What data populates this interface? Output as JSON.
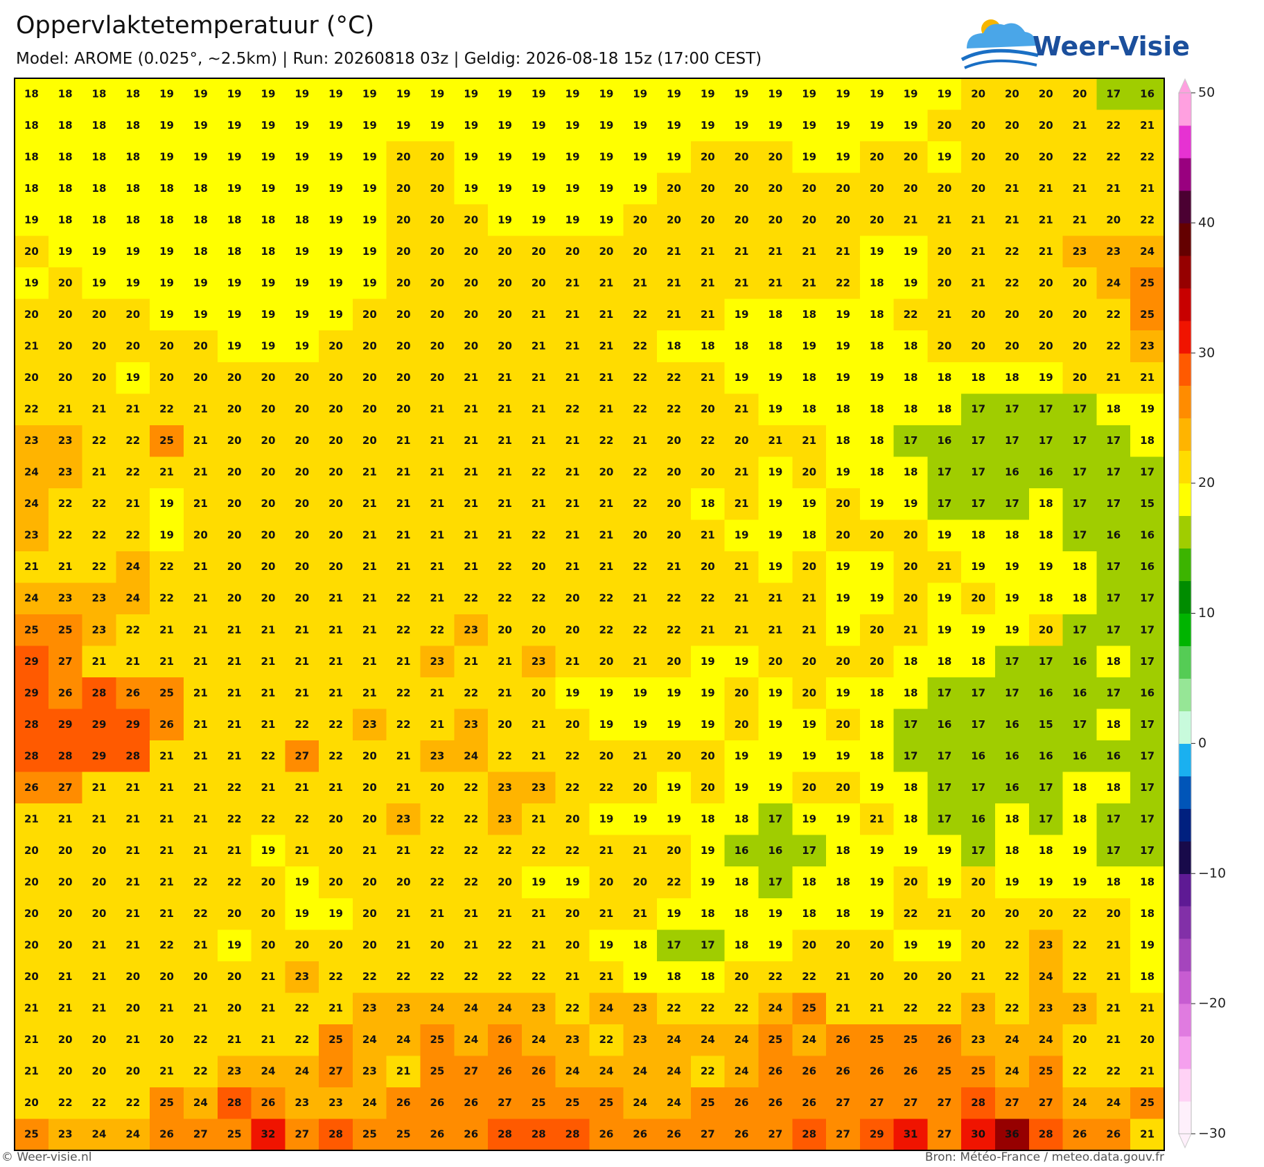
{
  "header": {
    "title": "Oppervlaktetemperatuur (°C)",
    "subtitle": "Model: AROME (0.025°, ~2.5km)  |  Run: 20260818 03z  |  Geldig: 2026-08-18 15z (17:00 CEST)",
    "logo": "Weer-Visie"
  },
  "map": {
    "grid": [
      [
        18,
        18,
        18,
        18,
        19,
        19,
        19,
        19,
        19,
        19,
        19,
        19,
        19,
        19,
        19,
        19,
        19,
        19,
        19,
        19,
        19,
        19,
        19,
        19,
        19,
        19,
        19,
        19,
        20,
        20,
        20,
        20,
        17,
        16
      ],
      [
        18,
        18,
        18,
        18,
        19,
        19,
        19,
        19,
        19,
        19,
        19,
        19,
        19,
        19,
        19,
        19,
        19,
        19,
        19,
        19,
        19,
        19,
        19,
        19,
        19,
        19,
        19,
        20,
        20,
        20,
        20,
        21,
        22,
        21
      ],
      [
        18,
        18,
        18,
        18,
        19,
        19,
        19,
        19,
        19,
        19,
        19,
        20,
        20,
        19,
        19,
        19,
        19,
        19,
        19,
        19,
        20,
        20,
        20,
        19,
        19,
        20,
        20,
        19,
        20,
        20,
        20,
        22,
        22,
        22
      ],
      [
        18,
        18,
        18,
        18,
        18,
        18,
        19,
        19,
        19,
        19,
        19,
        20,
        20,
        19,
        19,
        19,
        19,
        19,
        19,
        20,
        20,
        20,
        20,
        20,
        20,
        20,
        20,
        20,
        20,
        21,
        21,
        21,
        21,
        21
      ],
      [
        19,
        18,
        18,
        18,
        18,
        18,
        18,
        18,
        18,
        19,
        19,
        20,
        20,
        20,
        19,
        19,
        19,
        19,
        20,
        20,
        20,
        20,
        20,
        20,
        20,
        20,
        21,
        21,
        21,
        21,
        21,
        21,
        20,
        22
      ],
      [
        20,
        19,
        19,
        19,
        19,
        18,
        18,
        18,
        19,
        19,
        19,
        20,
        20,
        20,
        20,
        20,
        20,
        20,
        20,
        21,
        21,
        21,
        21,
        21,
        21,
        19,
        19,
        20,
        21,
        22,
        21,
        23,
        23,
        24
      ],
      [
        19,
        20,
        19,
        19,
        19,
        19,
        19,
        19,
        19,
        19,
        19,
        20,
        20,
        20,
        20,
        20,
        21,
        21,
        21,
        21,
        21,
        21,
        21,
        21,
        22,
        18,
        19,
        20,
        21,
        22,
        20,
        20,
        24,
        25
      ],
      [
        20,
        20,
        20,
        20,
        19,
        19,
        19,
        19,
        19,
        19,
        20,
        20,
        20,
        20,
        20,
        21,
        21,
        21,
        22,
        21,
        21,
        19,
        18,
        18,
        19,
        18,
        22,
        21,
        20,
        20,
        20,
        20,
        22,
        25
      ],
      [
        21,
        20,
        20,
        20,
        20,
        20,
        19,
        19,
        19,
        20,
        20,
        20,
        20,
        20,
        20,
        21,
        21,
        21,
        22,
        18,
        18,
        18,
        18,
        19,
        19,
        18,
        18,
        20,
        20,
        20,
        20,
        20,
        22,
        23
      ],
      [
        20,
        20,
        20,
        19,
        20,
        20,
        20,
        20,
        20,
        20,
        20,
        20,
        20,
        21,
        21,
        21,
        21,
        21,
        22,
        22,
        21,
        19,
        19,
        18,
        19,
        19,
        18,
        18,
        18,
        18,
        19,
        20,
        21,
        21
      ],
      [
        22,
        21,
        21,
        21,
        22,
        21,
        20,
        20,
        20,
        20,
        20,
        20,
        21,
        21,
        21,
        21,
        22,
        21,
        22,
        22,
        20,
        21,
        19,
        18,
        18,
        18,
        18,
        18,
        17,
        17,
        17,
        17,
        18,
        19
      ],
      [
        23,
        23,
        22,
        22,
        25,
        21,
        20,
        20,
        20,
        20,
        20,
        21,
        21,
        21,
        21,
        21,
        21,
        22,
        21,
        20,
        22,
        20,
        21,
        21,
        18,
        18,
        17,
        16,
        17,
        17,
        17,
        17,
        17,
        18
      ],
      [
        24,
        23,
        21,
        22,
        21,
        21,
        20,
        20,
        20,
        20,
        21,
        21,
        21,
        21,
        21,
        22,
        21,
        20,
        22,
        20,
        20,
        21,
        19,
        20,
        19,
        18,
        18,
        17,
        17,
        16,
        16,
        17,
        17,
        17
      ],
      [
        24,
        22,
        22,
        21,
        19,
        21,
        20,
        20,
        20,
        20,
        21,
        21,
        21,
        21,
        21,
        21,
        21,
        21,
        22,
        20,
        18,
        21,
        19,
        19,
        20,
        19,
        19,
        17,
        17,
        17,
        18,
        17,
        17,
        15
      ],
      [
        23,
        22,
        22,
        22,
        19,
        20,
        20,
        20,
        20,
        20,
        21,
        21,
        21,
        21,
        21,
        22,
        21,
        21,
        20,
        20,
        21,
        19,
        19,
        18,
        20,
        20,
        20,
        19,
        18,
        18,
        18,
        17,
        16,
        16
      ],
      [
        21,
        21,
        22,
        24,
        22,
        21,
        20,
        20,
        20,
        20,
        21,
        21,
        21,
        21,
        22,
        20,
        21,
        21,
        22,
        21,
        20,
        21,
        19,
        20,
        19,
        19,
        20,
        21,
        19,
        19,
        19,
        18,
        17,
        16
      ],
      [
        24,
        23,
        23,
        24,
        22,
        21,
        20,
        20,
        20,
        21,
        21,
        22,
        21,
        22,
        22,
        22,
        20,
        22,
        21,
        22,
        22,
        21,
        21,
        21,
        19,
        19,
        20,
        19,
        20,
        19,
        18,
        18,
        17,
        17
      ],
      [
        25,
        25,
        23,
        22,
        21,
        21,
        21,
        21,
        21,
        21,
        21,
        22,
        22,
        23,
        20,
        20,
        20,
        22,
        22,
        22,
        21,
        21,
        21,
        21,
        19,
        20,
        21,
        19,
        19,
        19,
        20,
        17,
        17,
        17
      ],
      [
        29,
        27,
        21,
        21,
        21,
        21,
        21,
        21,
        21,
        21,
        21,
        21,
        23,
        21,
        21,
        23,
        21,
        20,
        21,
        20,
        19,
        19,
        20,
        20,
        20,
        20,
        18,
        18,
        18,
        17,
        17,
        16,
        18,
        17
      ],
      [
        29,
        26,
        28,
        26,
        25,
        21,
        21,
        21,
        21,
        21,
        21,
        22,
        21,
        22,
        21,
        20,
        19,
        19,
        19,
        19,
        19,
        20,
        19,
        20,
        19,
        18,
        18,
        17,
        17,
        17,
        16,
        16,
        17,
        16
      ],
      [
        28,
        29,
        29,
        29,
        26,
        21,
        21,
        21,
        22,
        22,
        23,
        22,
        21,
        23,
        20,
        21,
        20,
        19,
        19,
        19,
        19,
        20,
        19,
        19,
        20,
        18,
        17,
        16,
        17,
        16,
        15,
        17,
        18,
        17
      ],
      [
        28,
        28,
        29,
        28,
        21,
        21,
        21,
        22,
        27,
        22,
        20,
        21,
        23,
        24,
        22,
        21,
        22,
        20,
        21,
        20,
        20,
        19,
        19,
        19,
        19,
        18,
        17,
        17,
        16,
        16,
        16,
        16,
        16,
        17
      ],
      [
        26,
        27,
        21,
        21,
        21,
        21,
        22,
        21,
        21,
        21,
        20,
        21,
        20,
        22,
        23,
        23,
        22,
        22,
        20,
        19,
        20,
        19,
        19,
        20,
        20,
        19,
        18,
        17,
        17,
        16,
        17,
        18,
        18,
        17
      ],
      [
        21,
        21,
        21,
        21,
        21,
        21,
        22,
        22,
        22,
        20,
        20,
        23,
        22,
        22,
        23,
        21,
        20,
        19,
        19,
        19,
        18,
        18,
        17,
        19,
        19,
        21,
        18,
        17,
        16,
        18,
        17,
        18,
        17,
        17
      ],
      [
        20,
        20,
        20,
        21,
        21,
        21,
        21,
        19,
        21,
        20,
        21,
        21,
        22,
        22,
        22,
        22,
        22,
        21,
        21,
        20,
        19,
        16,
        16,
        17,
        18,
        19,
        19,
        19,
        17,
        18,
        18,
        19,
        17,
        17
      ],
      [
        20,
        20,
        20,
        21,
        21,
        22,
        22,
        20,
        19,
        20,
        20,
        20,
        22,
        22,
        20,
        19,
        19,
        20,
        20,
        22,
        19,
        18,
        17,
        18,
        18,
        19,
        20,
        19,
        20,
        19,
        19,
        19,
        18,
        18
      ],
      [
        20,
        20,
        20,
        21,
        21,
        22,
        20,
        20,
        19,
        19,
        20,
        21,
        21,
        21,
        21,
        21,
        20,
        21,
        21,
        19,
        18,
        18,
        19,
        18,
        18,
        19,
        22,
        21,
        20,
        20,
        20,
        22,
        20,
        18
      ],
      [
        20,
        20,
        21,
        21,
        22,
        21,
        19,
        20,
        20,
        20,
        20,
        21,
        20,
        21,
        22,
        21,
        20,
        19,
        18,
        17,
        17,
        18,
        19,
        20,
        20,
        20,
        19,
        19,
        20,
        22,
        23,
        22,
        21,
        19
      ],
      [
        20,
        21,
        21,
        20,
        20,
        20,
        20,
        21,
        23,
        22,
        22,
        22,
        22,
        22,
        22,
        22,
        21,
        21,
        19,
        18,
        18,
        20,
        22,
        22,
        21,
        20,
        20,
        20,
        21,
        22,
        24,
        22,
        21,
        18
      ],
      [
        21,
        21,
        21,
        20,
        21,
        21,
        20,
        21,
        22,
        21,
        23,
        23,
        24,
        24,
        24,
        23,
        22,
        24,
        23,
        22,
        22,
        22,
        24,
        25,
        21,
        21,
        22,
        22,
        23,
        22,
        23,
        23,
        21,
        21
      ],
      [
        21,
        20,
        20,
        21,
        20,
        22,
        21,
        21,
        22,
        25,
        24,
        24,
        25,
        24,
        26,
        24,
        23,
        22,
        23,
        24,
        24,
        24,
        25,
        24,
        26,
        25,
        25,
        26,
        23,
        24,
        24,
        20,
        21,
        20
      ],
      [
        21,
        20,
        20,
        20,
        21,
        22,
        23,
        24,
        24,
        27,
        23,
        21,
        25,
        27,
        26,
        26,
        24,
        24,
        24,
        24,
        22,
        24,
        26,
        26,
        26,
        26,
        26,
        25,
        25,
        24,
        25,
        22,
        22,
        21
      ],
      [
        20,
        22,
        22,
        22,
        25,
        24,
        28,
        26,
        23,
        23,
        24,
        26,
        26,
        26,
        27,
        25,
        25,
        25,
        24,
        24,
        25,
        26,
        26,
        26,
        27,
        27,
        27,
        27,
        28,
        27,
        27,
        24,
        24,
        25
      ],
      [
        25,
        23,
        24,
        24,
        26,
        27,
        25,
        32,
        27,
        28,
        25,
        25,
        26,
        26,
        28,
        28,
        28,
        26,
        26,
        26,
        27,
        26,
        27,
        28,
        27,
        29,
        31,
        27,
        30,
        36,
        28,
        26,
        26,
        21
      ]
    ]
  },
  "colorbar": {
    "lim": [
      -30,
      50
    ],
    "ticks": [
      50,
      40,
      30,
      20,
      10,
      0,
      {
        "value": -10,
        "label": "−10"
      },
      {
        "value": -20,
        "label": "−20"
      },
      {
        "value": -30,
        "label": "−30"
      }
    ],
    "colors": [
      "#fef0fb",
      "#ffd2f5",
      "#f5a0ee",
      "#e07be0",
      "#c75cd1",
      "#a545bd",
      "#8230a8",
      "#5e1a94",
      "#180a4a",
      "#00207f",
      "#0055b8",
      "#1ab0f0",
      "#c8fadc",
      "#96e696",
      "#55cc55",
      "#00b400",
      "#008c00",
      "#3cb400",
      "#a0cd00",
      "#ffff00",
      "#ffdc00",
      "#ffb400",
      "#ff8c00",
      "#ff5a00",
      "#f01400",
      "#c80000",
      "#960000",
      "#640000",
      "#4b0032",
      "#99007f",
      "#e632d2",
      "#ffa0e0"
    ]
  },
  "footer": {
    "left": "© Weer-visie.nl",
    "right": "Bron: Météo-France / meteo.data.gouv.fr"
  }
}
